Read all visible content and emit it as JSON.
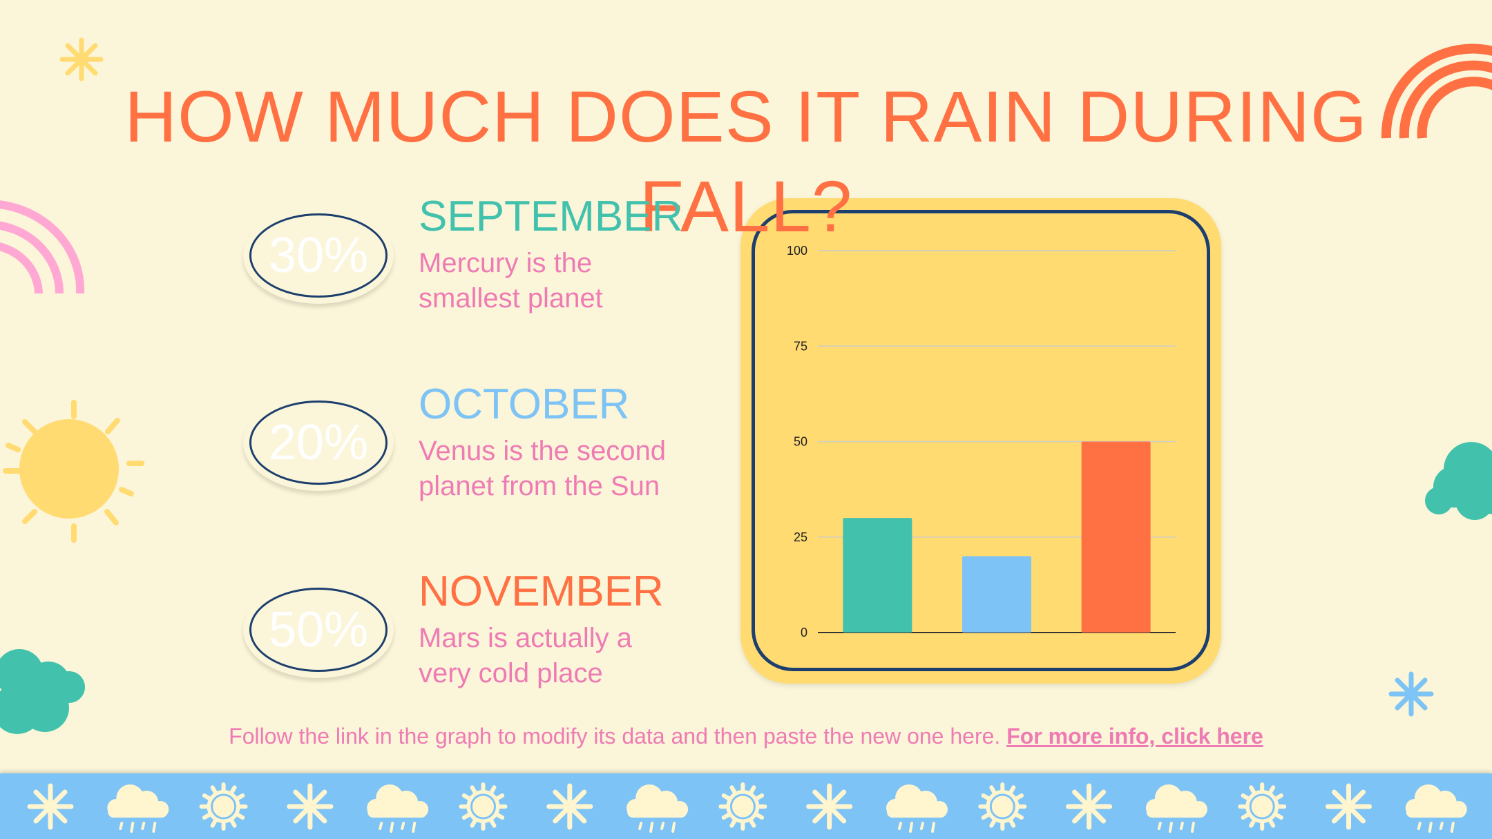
{
  "title": "HOW MUCH DOES IT RAIN DURING FALL?",
  "items": [
    {
      "percent": "30%",
      "month": "SEPTEMBER",
      "description_line1": "Mercury is the",
      "description_line2": "smallest planet",
      "color": "#42C1AC"
    },
    {
      "percent": "20%",
      "month": "OCTOBER",
      "description_line1": "Venus is the second",
      "description_line2": "planet from the Sun",
      "color": "#7EC3F5"
    },
    {
      "percent": "50%",
      "month": "NOVEMBER",
      "description_line1": "Mars is actually a",
      "description_line2": "very cold place",
      "color": "#FF7043"
    }
  ],
  "footer": {
    "text": "Follow the link in the graph to modify its data and then paste the new one here. ",
    "link_text": "For more info, click here"
  },
  "colors": {
    "background": "#FBF5D9",
    "title": "#FF7043",
    "body_text": "#EF7BB4",
    "chart_frame": "#FFDB72",
    "chart_border": "#1C3F6E",
    "band": "#7EC3F5",
    "sun": "#FFDB72",
    "rainbow_pink": "#FFA8D3",
    "cloud_teal": "#42C1AC",
    "star_blue": "#7EC3F5"
  },
  "decor_icons": [
    "asterisk-star-icon",
    "rainbow-icon",
    "sun-icon",
    "cloud-icon",
    "rain-cloud-icon"
  ],
  "chart_data": {
    "type": "bar",
    "categories": [
      "September",
      "October",
      "November"
    ],
    "values": [
      30,
      20,
      50
    ],
    "colors": [
      "#42C1AC",
      "#7EC3F5",
      "#FF7043"
    ],
    "ylim": [
      0,
      100
    ],
    "yticks": [
      "0",
      "25",
      "50",
      "75",
      "100"
    ],
    "show_category_labels": false,
    "grid": true,
    "legend": "none",
    "title": "",
    "xlabel": "",
    "ylabel": ""
  }
}
